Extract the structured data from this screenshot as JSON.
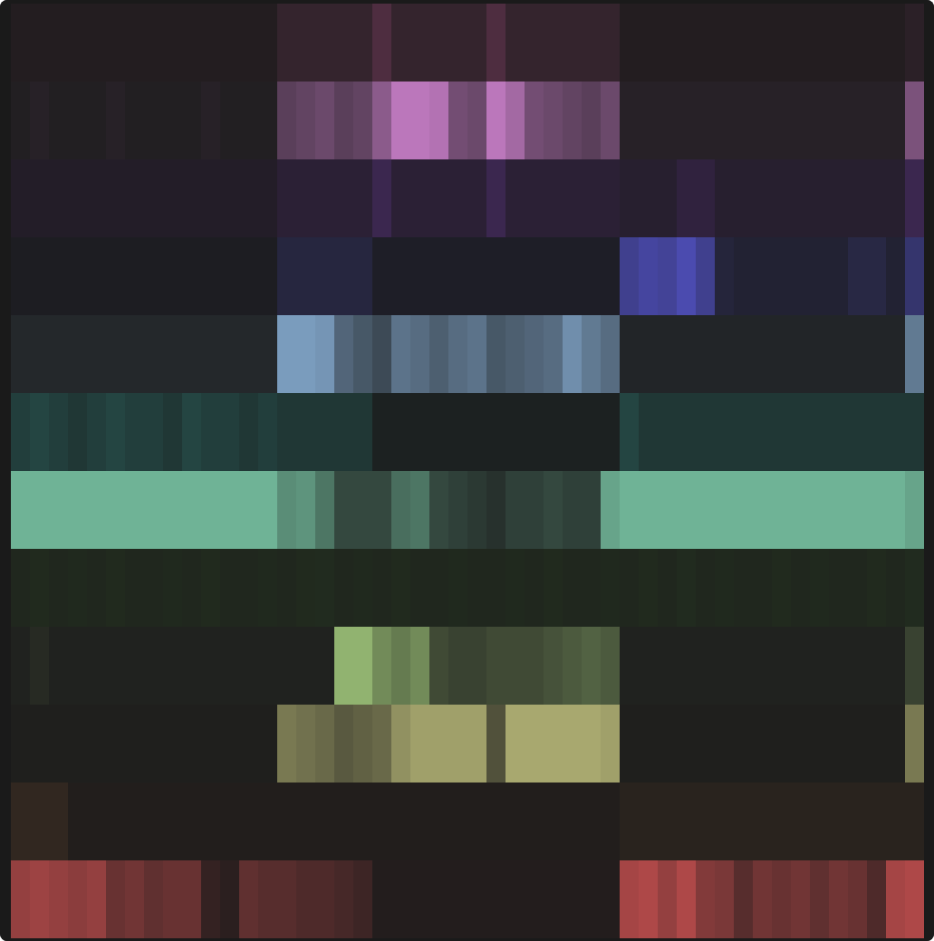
{
  "chart_data": {
    "type": "heatmap",
    "tick_labels": false,
    "value_range": [
      0,
      1
    ],
    "series": [
      {
        "color": "#c85a9a",
        "values": [
          0.05,
          0.05,
          0.05,
          0.05,
          0.05,
          0.05,
          0.05,
          0.05,
          0.05,
          0.05,
          0.05,
          0.05,
          0.05,
          0.05,
          0.15,
          0.15,
          0.15,
          0.15,
          0.15,
          0.3,
          0.15,
          0.15,
          0.15,
          0.15,
          0.15,
          0.3,
          0.15,
          0.15,
          0.15,
          0.15,
          0.15,
          0.15,
          0.05,
          0.05,
          0.05,
          0.05,
          0.05,
          0.05,
          0.05,
          0.05,
          0.05,
          0.05,
          0.05,
          0.05,
          0.05,
          0.05,
          0.05,
          0.1
        ]
      },
      {
        "color": "#bb77bb",
        "values": [
          0.05,
          0.08,
          0.05,
          0.05,
          0.05,
          0.08,
          0.05,
          0.05,
          0.05,
          0.05,
          0.08,
          0.05,
          0.05,
          0.05,
          0.4,
          0.45,
          0.5,
          0.4,
          0.45,
          0.7,
          1.0,
          1.0,
          0.95,
          0.55,
          0.5,
          1.0,
          0.85,
          0.55,
          0.5,
          0.45,
          0.4,
          0.5,
          0.08,
          0.08,
          0.08,
          0.08,
          0.08,
          0.08,
          0.08,
          0.08,
          0.08,
          0.08,
          0.08,
          0.08,
          0.08,
          0.08,
          0.08,
          0.6
        ]
      },
      {
        "color": "#8844cc",
        "values": [
          0.08,
          0.08,
          0.08,
          0.08,
          0.08,
          0.08,
          0.08,
          0.08,
          0.08,
          0.08,
          0.08,
          0.08,
          0.08,
          0.08,
          0.15,
          0.15,
          0.15,
          0.15,
          0.15,
          0.3,
          0.15,
          0.15,
          0.15,
          0.15,
          0.15,
          0.3,
          0.15,
          0.15,
          0.15,
          0.15,
          0.15,
          0.15,
          0.12,
          0.12,
          0.12,
          0.2,
          0.2,
          0.12,
          0.12,
          0.12,
          0.12,
          0.12,
          0.12,
          0.12,
          0.12,
          0.12,
          0.12,
          0.3
        ]
      },
      {
        "color": "#5050c0",
        "values": [
          0.05,
          0.05,
          0.05,
          0.05,
          0.05,
          0.05,
          0.05,
          0.05,
          0.05,
          0.05,
          0.05,
          0.05,
          0.05,
          0.05,
          0.22,
          0.22,
          0.22,
          0.22,
          0.22,
          0.08,
          0.08,
          0.08,
          0.08,
          0.08,
          0.08,
          0.08,
          0.08,
          0.08,
          0.08,
          0.08,
          0.08,
          0.08,
          0.7,
          0.8,
          0.75,
          0.9,
          0.7,
          0.2,
          0.15,
          0.15,
          0.15,
          0.15,
          0.15,
          0.15,
          0.25,
          0.25,
          0.15,
          0.5
        ]
      },
      {
        "color": "#7fa3c6",
        "values": [
          0.1,
          0.1,
          0.1,
          0.1,
          0.1,
          0.1,
          0.1,
          0.1,
          0.1,
          0.1,
          0.1,
          0.1,
          0.1,
          0.1,
          0.95,
          0.95,
          0.9,
          0.55,
          0.45,
          0.35,
          0.65,
          0.6,
          0.5,
          0.6,
          0.65,
          0.45,
          0.5,
          0.55,
          0.6,
          0.85,
          0.7,
          0.6,
          0.08,
          0.08,
          0.08,
          0.08,
          0.08,
          0.08,
          0.08,
          0.08,
          0.08,
          0.08,
          0.08,
          0.08,
          0.08,
          0.08,
          0.08,
          0.7
        ]
      },
      {
        "color": "#3aa9a0",
        "values": [
          0.25,
          0.3,
          0.25,
          0.2,
          0.25,
          0.3,
          0.25,
          0.25,
          0.2,
          0.3,
          0.25,
          0.25,
          0.2,
          0.25,
          0.2,
          0.2,
          0.2,
          0.2,
          0.2,
          0.05,
          0.05,
          0.05,
          0.05,
          0.05,
          0.05,
          0.05,
          0.05,
          0.05,
          0.05,
          0.05,
          0.05,
          0.05,
          0.3,
          0.2,
          0.2,
          0.2,
          0.2,
          0.2,
          0.2,
          0.2,
          0.2,
          0.2,
          0.2,
          0.2,
          0.2,
          0.2,
          0.2,
          0.2
        ]
      },
      {
        "color": "#6fb396",
        "values": [
          1.0,
          1.0,
          1.0,
          1.0,
          1.0,
          1.0,
          1.0,
          1.0,
          1.0,
          1.0,
          1.0,
          1.0,
          1.0,
          1.0,
          0.75,
          0.8,
          0.6,
          0.3,
          0.3,
          0.3,
          0.55,
          0.6,
          0.3,
          0.25,
          0.2,
          0.15,
          0.25,
          0.25,
          0.3,
          0.25,
          0.25,
          0.9,
          1.0,
          1.0,
          1.0,
          1.0,
          1.0,
          1.0,
          1.0,
          1.0,
          1.0,
          1.0,
          1.0,
          1.0,
          1.0,
          1.0,
          1.0,
          0.9
        ]
      },
      {
        "color": "#4a8a3a",
        "values": [
          0.12,
          0.14,
          0.12,
          0.13,
          0.12,
          0.14,
          0.12,
          0.12,
          0.13,
          0.12,
          0.14,
          0.12,
          0.12,
          0.13,
          0.12,
          0.14,
          0.15,
          0.12,
          0.13,
          0.12,
          0.14,
          0.12,
          0.12,
          0.13,
          0.12,
          0.12,
          0.13,
          0.12,
          0.14,
          0.12,
          0.12,
          0.13,
          0.12,
          0.14,
          0.12,
          0.15,
          0.12,
          0.13,
          0.12,
          0.12,
          0.14,
          0.12,
          0.13,
          0.12,
          0.12,
          0.14,
          0.12,
          0.15
        ]
      },
      {
        "color": "#97bb74",
        "values": [
          0.05,
          0.1,
          0.05,
          0.05,
          0.05,
          0.05,
          0.05,
          0.05,
          0.05,
          0.05,
          0.05,
          0.05,
          0.05,
          0.05,
          0.05,
          0.05,
          0.05,
          0.95,
          0.95,
          0.7,
          0.6,
          0.7,
          0.3,
          0.25,
          0.25,
          0.3,
          0.3,
          0.3,
          0.35,
          0.4,
          0.45,
          0.4,
          0.05,
          0.05,
          0.05,
          0.05,
          0.05,
          0.05,
          0.05,
          0.05,
          0.05,
          0.05,
          0.05,
          0.05,
          0.05,
          0.05,
          0.05,
          0.25
        ]
      },
      {
        "color": "#b8b878",
        "values": [
          0.03,
          0.03,
          0.03,
          0.03,
          0.03,
          0.03,
          0.03,
          0.03,
          0.03,
          0.03,
          0.03,
          0.03,
          0.03,
          0.03,
          0.6,
          0.55,
          0.5,
          0.4,
          0.45,
          0.5,
          0.75,
          0.85,
          0.85,
          0.85,
          0.85,
          0.35,
          0.9,
          0.9,
          0.9,
          0.9,
          0.9,
          0.85,
          0.03,
          0.03,
          0.03,
          0.03,
          0.03,
          0.03,
          0.03,
          0.03,
          0.03,
          0.03,
          0.03,
          0.03,
          0.03,
          0.03,
          0.03,
          0.6
        ]
      },
      {
        "color": "#b07040",
        "values": [
          0.15,
          0.15,
          0.15,
          0.05,
          0.05,
          0.05,
          0.05,
          0.05,
          0.05,
          0.05,
          0.05,
          0.05,
          0.05,
          0.05,
          0.05,
          0.05,
          0.05,
          0.05,
          0.05,
          0.05,
          0.05,
          0.05,
          0.05,
          0.05,
          0.05,
          0.05,
          0.05,
          0.05,
          0.05,
          0.05,
          0.05,
          0.05,
          0.1,
          0.1,
          0.1,
          0.1,
          0.1,
          0.1,
          0.1,
          0.1,
          0.1,
          0.1,
          0.1,
          0.1,
          0.1,
          0.1,
          0.1,
          0.1
        ]
      },
      {
        "color": "#c85050",
        "values": [
          0.7,
          0.75,
          0.7,
          0.65,
          0.7,
          0.45,
          0.5,
          0.4,
          0.45,
          0.45,
          0.15,
          0.1,
          0.4,
          0.35,
          0.35,
          0.3,
          0.3,
          0.25,
          0.2,
          0.05,
          0.05,
          0.05,
          0.05,
          0.05,
          0.05,
          0.05,
          0.05,
          0.05,
          0.05,
          0.05,
          0.05,
          0.05,
          0.8,
          0.85,
          0.7,
          0.85,
          0.6,
          0.55,
          0.35,
          0.5,
          0.45,
          0.5,
          0.4,
          0.5,
          0.45,
          0.3,
          0.8,
          0.85
        ]
      }
    ]
  }
}
